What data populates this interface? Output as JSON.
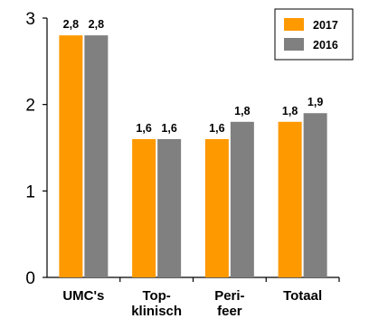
{
  "chart_data": {
    "type": "bar",
    "categories": [
      [
        "UMC's"
      ],
      [
        "Top-",
        "klinisch"
      ],
      [
        "Peri-",
        "feer"
      ],
      [
        "Totaal"
      ]
    ],
    "series": [
      {
        "name": "2017",
        "color": "#FF9900",
        "values": [
          2.8,
          1.6,
          1.6,
          1.8
        ],
        "labels": [
          "2,8",
          "1,6",
          "1,6",
          "1,8"
        ]
      },
      {
        "name": "2016",
        "color": "#808080",
        "values": [
          2.8,
          1.6,
          1.8,
          1.9
        ],
        "labels": [
          "2,8",
          "1,6",
          "1,8",
          "1,9"
        ]
      }
    ],
    "ylim": [
      0,
      3
    ],
    "yticks": [
      "0",
      "1",
      "2",
      "3"
    ],
    "grid": false,
    "legend": "top-right",
    "title": "",
    "xlabel": "",
    "ylabel": ""
  }
}
